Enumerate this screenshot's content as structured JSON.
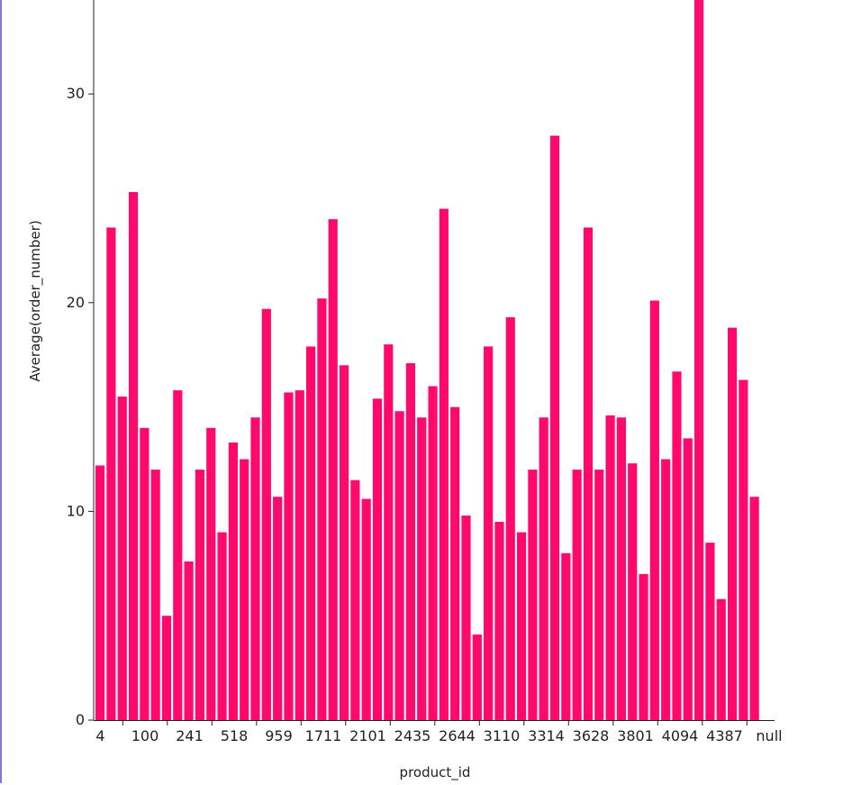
{
  "chart_data": {
    "type": "bar",
    "xlabel": "product_id",
    "ylabel": "Average(order_number)",
    "ylim": [
      0,
      34.5
    ],
    "y_ticks": [
      "0",
      "10",
      "20",
      "30"
    ],
    "x_tick_labels": [
      "4",
      "100",
      "241",
      "518",
      "959",
      "1711",
      "2101",
      "2435",
      "2644",
      "3110",
      "3314",
      "3628",
      "3801",
      "4094",
      "4387",
      "null"
    ],
    "bar_color": "#ff0a6c",
    "values": [
      12.2,
      23.6,
      15.5,
      25.3,
      14.0,
      12.0,
      5.0,
      15.8,
      7.6,
      12.0,
      14.0,
      9.0,
      13.3,
      12.5,
      14.5,
      19.7,
      10.7,
      15.7,
      15.8,
      17.9,
      20.2,
      24.0,
      17.0,
      11.5,
      10.6,
      15.4,
      18.0,
      14.8,
      17.1,
      14.5,
      16.0,
      24.5,
      15.0,
      9.8,
      4.1,
      17.9,
      9.5,
      19.3,
      9.0,
      12.0,
      14.5,
      28.0,
      8.0,
      12.0,
      23.6,
      12.0,
      14.6,
      14.5,
      12.3,
      7.0,
      20.1,
      12.5,
      16.7,
      13.5,
      34.5,
      8.5,
      5.8,
      18.8,
      16.3,
      10.7
    ]
  }
}
